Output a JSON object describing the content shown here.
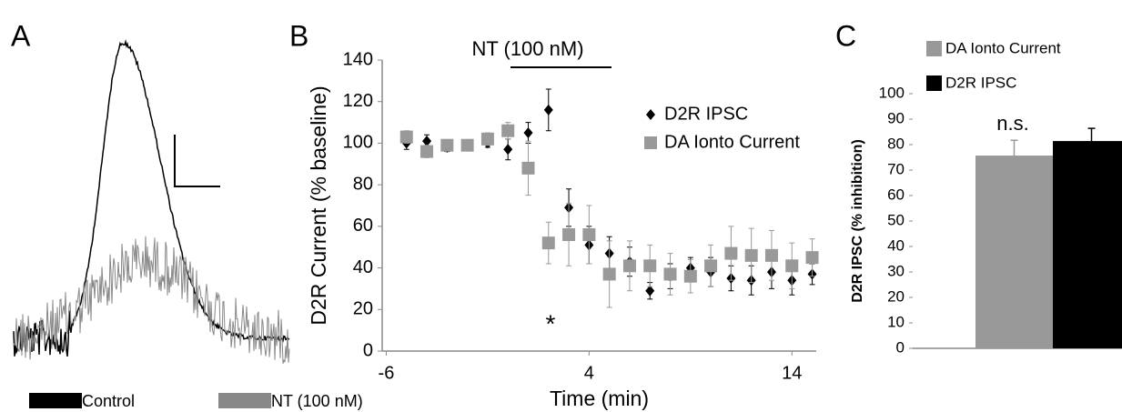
{
  "chart_data": [
    {
      "type": "trace",
      "label": "A",
      "series": [
        {
          "name": "Control",
          "color": "#000000"
        },
        {
          "name": "NT (100 nM)",
          "color": "#888888"
        }
      ]
    },
    {
      "type": "scatter",
      "label": "B",
      "annotation": "NT (100 nM)",
      "significance": "*",
      "x_label": "Time (min)",
      "y_label": "D2R Current (% baseline)",
      "x": [
        -5,
        -4,
        -3,
        -2,
        -1,
        0,
        1,
        2,
        3,
        4,
        5,
        6,
        7,
        8,
        9,
        10,
        11,
        12,
        13,
        14,
        15
      ],
      "series": [
        {
          "name": "D2R IPSC",
          "color": "#000000",
          "marker": "diamond",
          "values": [
            100,
            101,
            98,
            99,
            100,
            97,
            105,
            116,
            69,
            51,
            47,
            43,
            29,
            36,
            40,
            38,
            35,
            34,
            38,
            34,
            37
          ],
          "errors": [
            3,
            3,
            2,
            2,
            2,
            5,
            5,
            10,
            9,
            9,
            8,
            7,
            4,
            6,
            5,
            7,
            6,
            7,
            8,
            7,
            5
          ]
        },
        {
          "name": "DA Ionto Current",
          "color": "#999999",
          "marker": "square",
          "values": [
            103,
            96,
            99,
            99,
            102,
            106,
            88,
            52,
            56,
            56,
            37,
            41,
            41,
            37,
            36,
            41,
            47,
            46,
            46,
            41,
            45
          ],
          "errors": [
            3,
            3,
            2,
            2,
            3,
            4,
            13,
            10,
            15,
            14,
            16,
            12,
            10,
            10,
            8,
            10,
            13,
            13,
            12,
            11,
            9
          ]
        }
      ],
      "xlim": [
        -6.2,
        15.2
      ],
      "xticks": [
        -6,
        4,
        14
      ],
      "ylim": [
        0,
        140
      ],
      "yticks": [
        0,
        20,
        40,
        60,
        80,
        100,
        120,
        140
      ]
    },
    {
      "type": "bar",
      "label": "C",
      "annotation": "n.s.",
      "y_label": "D2R IPSC (% inhibition)",
      "series": [
        {
          "name": "DA Ionto Current",
          "color": "#999999",
          "values": [
            75.7
          ],
          "errors": [
            6
          ]
        },
        {
          "name": "D2R IPSC",
          "color": "#000000",
          "values": [
            81.4
          ],
          "errors": [
            5
          ]
        }
      ],
      "ylim": [
        0,
        100
      ],
      "yticks": [
        0,
        10,
        20,
        30,
        40,
        50,
        60,
        70,
        80,
        90,
        100
      ]
    }
  ]
}
